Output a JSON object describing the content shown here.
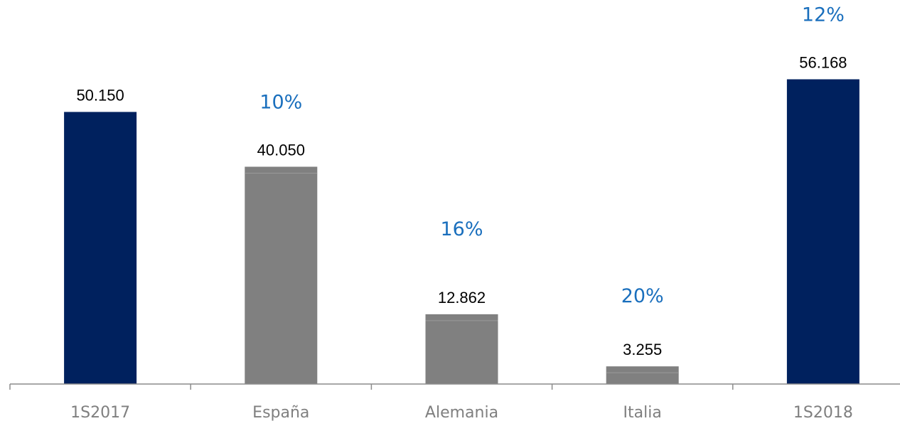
{
  "colors": {
    "total_bar": "#00215e",
    "country_bar": "#808080",
    "percent_text": "#1a6fbd",
    "axis": "#8c8c8c"
  },
  "chart_data": {
    "type": "bar",
    "categories": [
      "1S2017",
      "España",
      "Alemania",
      "Italia",
      "1S2018"
    ],
    "values": [
      50150,
      40050,
      12862,
      3255,
      56168
    ],
    "value_labels": [
      "50.150",
      "40.050",
      "12.862",
      "3.255",
      "56.168"
    ],
    "percent_labels": [
      "",
      "10%",
      "16%",
      "20%",
      "12%"
    ],
    "bar_kind": [
      "total",
      "country",
      "country",
      "country",
      "total"
    ],
    "title": "",
    "xlabel": "",
    "ylabel": "",
    "ylim": [
      0,
      60000
    ],
    "grid": false,
    "legend": "none"
  }
}
